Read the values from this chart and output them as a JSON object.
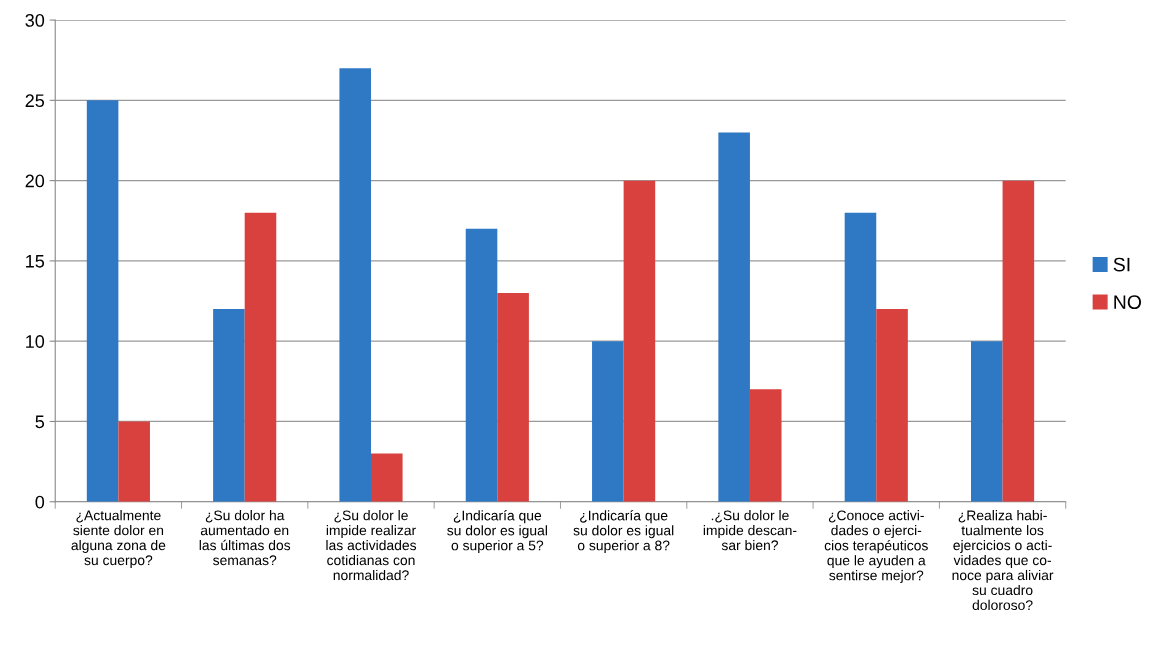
{
  "chart_data": {
    "type": "bar",
    "categories": [
      "¿Actualmente\nsiente dolor en\nalguna zona de\nsu cuerpo?",
      "¿Su dolor ha\naumentado en\nlas últimas dos\nsemanas?",
      "¿Su dolor le\nimpide realizar\nlas actividades\ncotidianas con\nnormalidad?",
      "¿Indicaría que\nsu dolor es igual\no superior a 5?",
      "¿Indicaría que\nsu dolor es igual\no superior a 8?",
      ".¿Su dolor le\nimpide descan-\nsar bien?",
      "¿Conoce activi-\ndades o ejerci-\ncios terapéuticos\nque le ayuden a\nsentirse mejor?",
      "¿Realiza habi-\ntualmente los\nejercicios o acti-\nvidades que co-\nnoce para aliviar\nsu cuadro\ndoloroso?"
    ],
    "series": [
      {
        "name": "SI",
        "color": "#2e78c4",
        "values": [
          25,
          12,
          27,
          17,
          10,
          23,
          18,
          10
        ]
      },
      {
        "name": "NO",
        "color": "#d9413f",
        "values": [
          5,
          18,
          3,
          13,
          20,
          7,
          12,
          20
        ]
      }
    ],
    "ylim": [
      0,
      30
    ],
    "yticks": [
      0,
      5,
      10,
      15,
      20,
      25,
      30
    ],
    "grid": "y",
    "legend": "right"
  }
}
